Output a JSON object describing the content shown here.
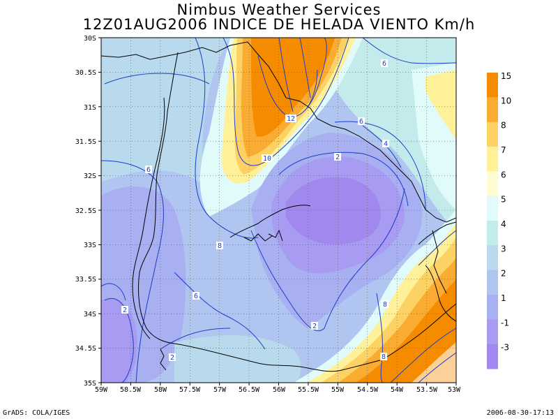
{
  "header": {
    "title": "Nimbus Weather Services",
    "subtitle": "12Z01AUG2006 INDICE DE HELADA VIENTO Km/h"
  },
  "map": {
    "lat_labels": [
      "30S",
      "30.5S",
      "31S",
      "31.5S",
      "32S",
      "32.5S",
      "33S",
      "33.5S",
      "34S",
      "34.5S",
      "35S"
    ],
    "lon_labels": [
      "59W",
      "58.5W",
      "58W",
      "57.5W",
      "57W",
      "56.5W",
      "56W",
      "55.5W",
      "55W",
      "54.5W",
      "54W",
      "53.5W",
      "53W"
    ],
    "contour_labels": [
      {
        "text": "6"
      },
      {
        "text": "12"
      },
      {
        "text": "10"
      },
      {
        "text": "6"
      },
      {
        "text": "4"
      },
      {
        "text": "2"
      },
      {
        "text": "6"
      },
      {
        "text": "8"
      },
      {
        "text": "6"
      },
      {
        "text": "2"
      },
      {
        "text": "8"
      },
      {
        "text": "8"
      },
      {
        "text": "2"
      },
      {
        "text": "2"
      }
    ]
  },
  "colorbar": {
    "labels": [
      "15",
      "10",
      "8",
      "7",
      "6",
      "5",
      "4",
      "3",
      "2",
      "1",
      "-1",
      "-3"
    ],
    "colors": [
      "#f58c00",
      "#faac32",
      "#fcd264",
      "#fff09a",
      "#fffcd2",
      "#e1fbfb",
      "#c4ebeb",
      "#b9d9ec",
      "#b0c6f0",
      "#a8b0f2",
      "#a79cf2",
      "#a088ee"
    ]
  },
  "footer": {
    "left": "GrADS: COLA/IGES",
    "right": "2006-08-30-17:13"
  },
  "colors": {
    "contour": "#1e3cc8",
    "boundary": "#000000",
    "grid": "#555555"
  }
}
